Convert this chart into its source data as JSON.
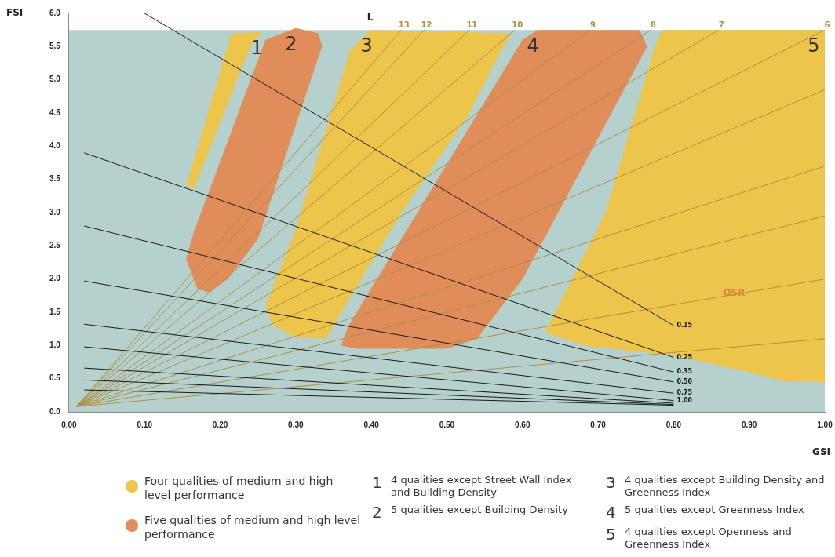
{
  "chart_data": {
    "type": "line",
    "xlabel": "GSI",
    "ylabel": "FSI",
    "xlim": [
      0,
      1
    ],
    "ylim": [
      0,
      6
    ],
    "xticks": [
      {
        "value": 0,
        "label": "0.00"
      },
      {
        "value": 0.1,
        "label": "0.10"
      },
      {
        "value": 0.2,
        "label": "0.20"
      },
      {
        "value": 0.3,
        "label": "0.30"
      },
      {
        "value": 0.4,
        "label": "0.40"
      },
      {
        "value": 0.5,
        "label": "0.50"
      },
      {
        "value": 0.6,
        "label": "0.60"
      },
      {
        "value": 0.7,
        "label": "0.70"
      },
      {
        "value": 0.8,
        "label": "0.80"
      },
      {
        "value": 0.9,
        "label": "0.90"
      },
      {
        "value": 1,
        "label": "1.00"
      }
    ],
    "yticks": [
      {
        "value": 0,
        "label": "0.0"
      },
      {
        "value": 0.5,
        "label": "0.5"
      },
      {
        "value": 1,
        "label": "1.0"
      },
      {
        "value": 1.5,
        "label": "1.5"
      },
      {
        "value": 2,
        "label": "2.0"
      },
      {
        "value": 2.5,
        "label": "2.5"
      },
      {
        "value": 3,
        "label": "3.0"
      },
      {
        "value": 3.5,
        "label": "3.5"
      },
      {
        "value": 4,
        "label": "4.0"
      },
      {
        "value": 4.5,
        "label": "4.5"
      },
      {
        "value": 5,
        "label": "5.0"
      },
      {
        "value": 5.5,
        "label": "5.5"
      },
      {
        "value": 6,
        "label": "6.0"
      }
    ],
    "grid": false,
    "legend": "bottom left",
    "marker": "none",
    "line_style": "solid",
    "series": [
      {
        "type": "area",
        "name": "Four qualities of medium and high level performance",
        "color": "#ecc54a",
        "x": [
          0.155,
          0.215,
          0.255,
          0.24,
          0.165
        ],
        "values": [
          3.4,
          5.7,
          5.72,
          5.5,
          3.35
        ]
      },
      {
        "type": "area",
        "name": "Five qualities of medium and high level performance",
        "color": "#e08d5a",
        "x": [
          0.17,
          0.155,
          0.165,
          0.26,
          0.3,
          0.33,
          0.335,
          0.32,
          0.25,
          0.21,
          0.185
        ],
        "values": [
          1.85,
          2.3,
          2.7,
          5.6,
          5.78,
          5.7,
          5.5,
          5.0,
          2.6,
          2.0,
          1.8
        ]
      },
      {
        "type": "area",
        "color": "#ecc54a",
        "x": [
          0.26,
          0.27,
          0.3,
          0.34,
          0.36,
          0.44,
          0.53,
          0.57,
          0.585,
          0.4,
          0.372,
          0.3
        ],
        "values": [
          1.6,
          1.3,
          1.12,
          1.1,
          1.5,
          3.0,
          4.5,
          5.4,
          5.7,
          5.75,
          5.45,
          2.75
        ]
      },
      {
        "type": "area",
        "color": "#e08d5a",
        "x": [
          0.36,
          0.37,
          0.6,
          0.62,
          0.755,
          0.765,
          0.6,
          0.54,
          0.5,
          0.38
        ],
        "values": [
          1.0,
          1.3,
          5.6,
          5.75,
          5.75,
          5.5,
          2.0,
          1.1,
          0.95,
          0.95
        ]
      },
      {
        "type": "area",
        "color": "#ecc54a",
        "x": [
          0.63,
          0.68,
          0.8,
          0.9,
          0.95,
          1.0,
          1.0,
          0.785,
          0.775,
          0.71
        ],
        "values": [
          1.2,
          1.0,
          0.85,
          0.6,
          0.45,
          0.45,
          5.75,
          5.75,
          5.5,
          3.0
        ]
      },
      {
        "name": "13",
        "color": "#b08f45",
        "x": [
          0.01,
          0.44
        ],
        "values": [
          0.08,
          5.75
        ]
      },
      {
        "name": "12",
        "color": "#b08f45",
        "x": [
          0.01,
          0.47
        ],
        "values": [
          0.08,
          5.75
        ]
      },
      {
        "name": "11",
        "color": "#b08f45",
        "x": [
          0.01,
          0.53
        ],
        "values": [
          0.08,
          5.75
        ]
      },
      {
        "name": "10",
        "color": "#b08f45",
        "x": [
          0.01,
          0.59
        ],
        "values": [
          0.08,
          5.75
        ]
      },
      {
        "name": "9",
        "color": "#b08f45",
        "x": [
          0.01,
          0.69
        ],
        "values": [
          0.08,
          5.75
        ]
      },
      {
        "name": "8",
        "color": "#b08f45",
        "x": [
          0.01,
          0.77
        ],
        "values": [
          0.08,
          5.75
        ]
      },
      {
        "name": "7",
        "color": "#b08f45",
        "x": [
          0.01,
          0.86
        ],
        "values": [
          0.08,
          5.75
        ]
      },
      {
        "name": "6",
        "color": "#b08f45",
        "x": [
          0.01,
          1.0
        ],
        "values": [
          0.08,
          5.75
        ]
      },
      {
        "color": "#b08f45",
        "x": [
          0.01,
          1.0
        ],
        "values": [
          0.08,
          4.85
        ]
      },
      {
        "color": "#b08f45",
        "x": [
          0.01,
          1.0
        ],
        "values": [
          0.08,
          3.7
        ]
      },
      {
        "color": "#b08f45",
        "x": [
          0.01,
          1.0
        ],
        "values": [
          0.08,
          2.95
        ]
      },
      {
        "color": "#b08f45",
        "x": [
          0.01,
          1.0
        ],
        "values": [
          0.08,
          2.0
        ]
      },
      {
        "color": "#b08f45",
        "x": [
          0.01,
          1.0
        ],
        "values": [
          0.08,
          1.1
        ]
      },
      {
        "name": "0.15",
        "color": "#1a1a1a",
        "x": [
          0.1,
          0.8
        ],
        "values": [
          6.0,
          1.3
        ]
      },
      {
        "name": "0.25",
        "color": "#1a1a1a",
        "x": [
          0.02,
          0.8
        ],
        "values": [
          3.9,
          0.82
        ]
      },
      {
        "name": "0.35",
        "color": "#1a1a1a",
        "x": [
          0.02,
          0.8
        ],
        "values": [
          2.8,
          0.6
        ]
      },
      {
        "name": "0.50",
        "color": "#1a1a1a",
        "x": [
          0.02,
          0.8
        ],
        "values": [
          1.97,
          0.45
        ]
      },
      {
        "name": "0.75",
        "color": "#1a1a1a",
        "x": [
          0.02,
          0.8
        ],
        "values": [
          1.32,
          0.28
        ]
      },
      {
        "name": "1.00",
        "color": "#1a1a1a",
        "x": [
          0.02,
          0.8
        ],
        "values": [
          0.98,
          0.17
        ]
      },
      {
        "color": "#1a1a1a",
        "x": [
          0.02,
          0.8
        ],
        "values": [
          0.66,
          0.13
        ]
      },
      {
        "color": "#1a1a1a",
        "x": [
          0.02,
          0.8
        ],
        "values": [
          0.48,
          0.11
        ]
      },
      {
        "color": "#1a1a1a",
        "x": [
          0.02,
          0.8
        ],
        "values": [
          0.33,
          0.1
        ]
      }
    ],
    "annotations": [
      "1",
      "2",
      "3",
      "4",
      "5",
      "L",
      {
        "text": "OSR",
        "x": 0.88,
        "y": 1.78
      },
      "1 4 qualities except Street Wall Index and Building Density",
      "2 5 qualities except Building Density",
      "3 4 qualities except Building Density and Greenness Index",
      "4 5 qualities except Greenness Index",
      "5 4 qualities except Openness and Greenness Index"
    ]
  }
}
